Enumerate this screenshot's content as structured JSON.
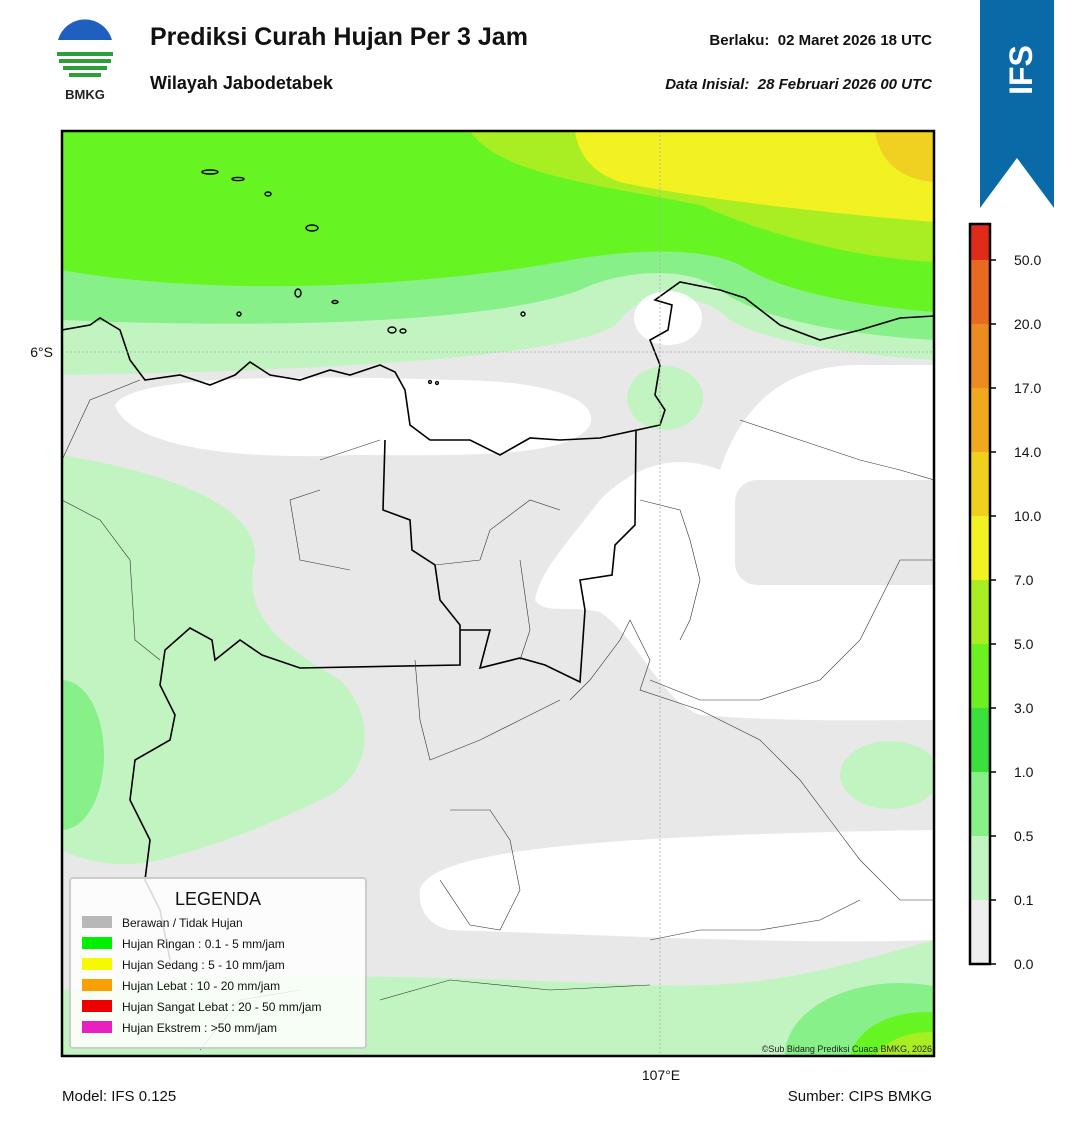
{
  "header": {
    "logo_text": "BMKG",
    "title": "Prediksi Curah Hujan Per 3 Jam",
    "subtitle": "Wilayah Jabodetabek",
    "valid": "Berlaku:  02 Maret 2026 18 UTC",
    "initial": "Data Inisial:  28 Februari 2026 00 UTC",
    "badge": "IFS"
  },
  "map": {
    "lat_label": "6°S",
    "lon_label": "107°E",
    "credit": "©Sub Bidang Prediksi Cuaca BMKG, 2026"
  },
  "legend": {
    "title": "LEGENDA",
    "items": [
      {
        "label": "Berawan / Tidak Hujan",
        "color": "#b8b8b8"
      },
      {
        "label": "Hujan Ringan : 0.1 - 5 mm/jam",
        "color": "#00f000"
      },
      {
        "label": "Hujan Sedang : 5 - 10 mm/jam",
        "color": "#f8f800"
      },
      {
        "label": "Hujan Lebat : 10 - 20 mm/jam",
        "color": "#f8a000"
      },
      {
        "label": "Hujan Sangat Lebat : 20 - 50 mm/jam",
        "color": "#ee0000"
      },
      {
        "label": "Hujan Ekstrem : >50 mm/jam",
        "color": "#e820c0"
      }
    ]
  },
  "colorbar": {
    "labels": [
      "0.0",
      "0.1",
      "0.5",
      "1.0",
      "3.0",
      "5.0",
      "7.0",
      "10.0",
      "14.0",
      "17.0",
      "20.0",
      "50.0"
    ],
    "colors": [
      "#eeeeee",
      "#c2f4c2",
      "#88f088",
      "#3ce03c",
      "#6cf020",
      "#a8ee22",
      "#f2f222",
      "#f0d01c",
      "#f0a81c",
      "#ec8c20",
      "#e86a20",
      "#e02a1a",
      "#e020b0"
    ]
  },
  "footer": {
    "model": "Model: IFS 0.125",
    "source": "Sumber: CIPS BMKG"
  }
}
